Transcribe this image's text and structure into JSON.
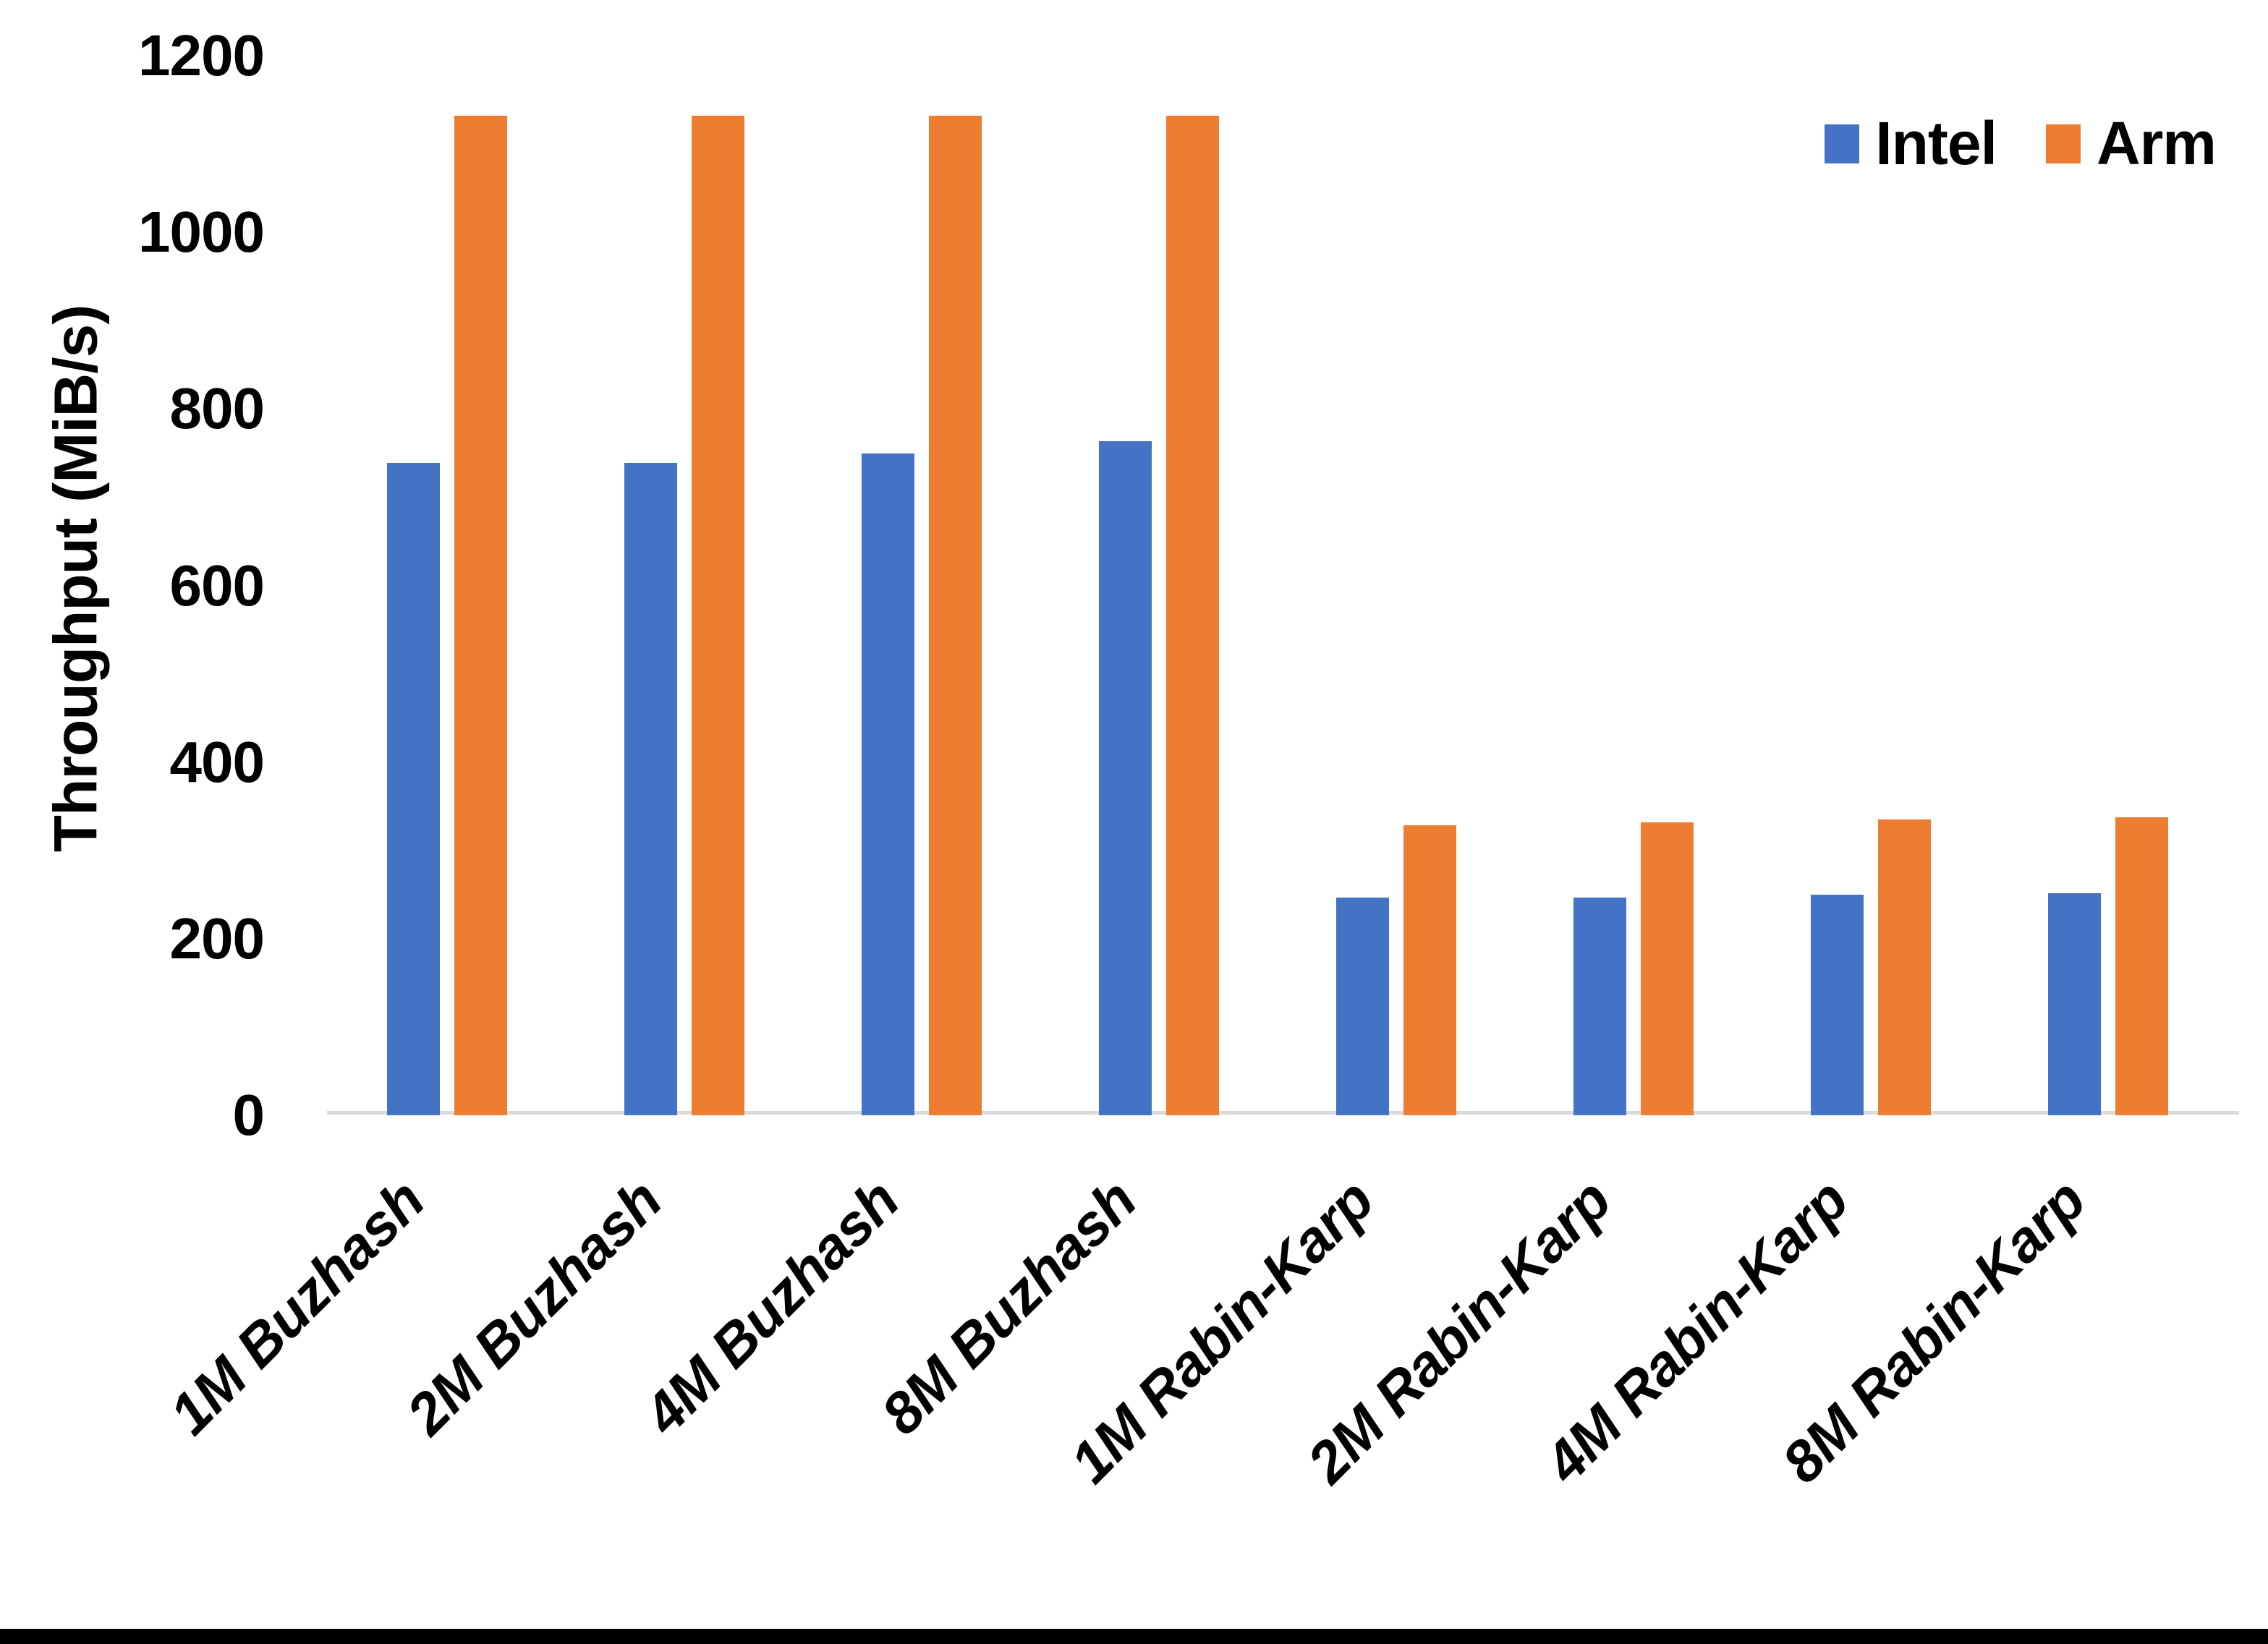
{
  "page": {
    "background": "#ffffff",
    "bottom_edge_color": "#000000"
  },
  "y_axis": {
    "title": "Throughput (MiB/s)",
    "tick_labels": [
      "0",
      "200",
      "400",
      "600",
      "800",
      "1000",
      "1200"
    ]
  },
  "legend": {
    "items": [
      {
        "label": "Intel",
        "color": "#4472C4"
      },
      {
        "label": "Arm",
        "color": "#ED7D31"
      }
    ]
  },
  "chart_data": {
    "type": "bar",
    "title": "",
    "xlabel": "",
    "ylabel": "Throughput (MiB/s)",
    "ylim": [
      0,
      1200
    ],
    "yticks": [
      0,
      200,
      400,
      600,
      800,
      1000,
      1200
    ],
    "grid": false,
    "legend_position": "top-right",
    "axis_line_color": "#D9D9D9",
    "categories": [
      "1M Buzhash",
      "2M Buzhash",
      "4M Buzhash",
      "8M Buzhash",
      "1M Rabin-Karp",
      "2M Rabin-Karp",
      "4M Rabin-Karp",
      "8M Rabin-Karp"
    ],
    "series": [
      {
        "name": "Intel",
        "color": "#4472C4",
        "values": [
          737,
          737,
          748,
          762,
          245,
          245,
          248,
          250
        ]
      },
      {
        "name": "Arm",
        "color": "#ED7D31",
        "values": [
          1130,
          1130,
          1130,
          1130,
          327,
          330,
          333,
          336
        ]
      }
    ]
  }
}
